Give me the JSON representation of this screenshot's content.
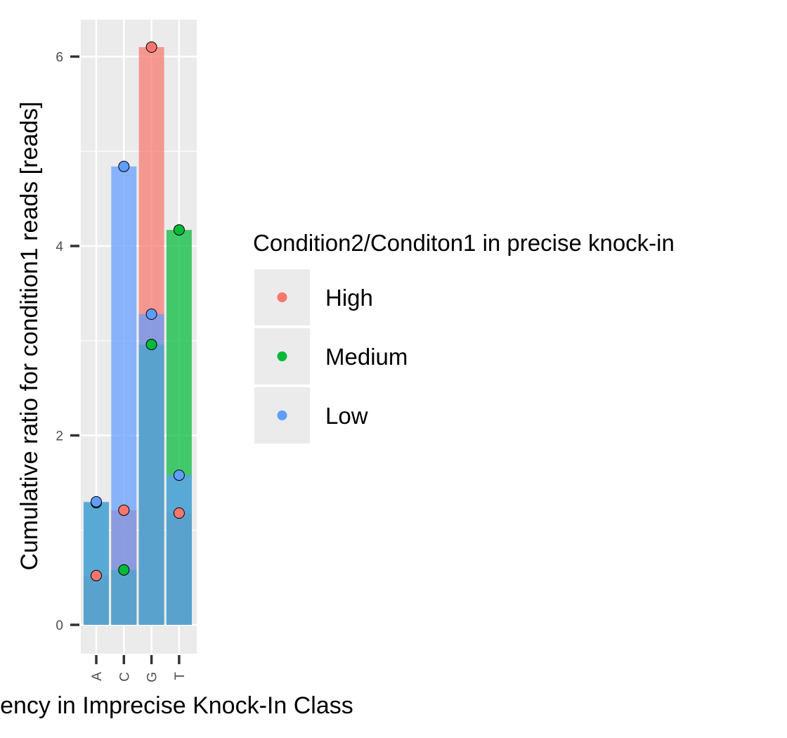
{
  "chart_data": {
    "type": "bar",
    "categories": [
      "A",
      "C",
      "G",
      "T"
    ],
    "xlabel": "Frequency in Imprecise Knock-In Class",
    "ylabel": "Cumulative ratio for condition1 reads [reads]",
    "ylim": [
      -0.3,
      6.4
    ],
    "yticks": [
      0,
      2,
      4,
      6
    ],
    "grid": true,
    "legend": {
      "title": "Condition2/Conditon1 in precise knock-in",
      "placement": "right",
      "entries": [
        "High",
        "Medium",
        "Low"
      ]
    },
    "series": [
      {
        "name": "High",
        "color": "#F8766D",
        "values": [
          0.52,
          1.21,
          6.1,
          1.18
        ]
      },
      {
        "name": "Medium",
        "color": "#00BA38",
        "values": [
          1.29,
          0.58,
          2.96,
          4.17
        ]
      },
      {
        "name": "Low",
        "color": "#619CFF",
        "values": [
          1.3,
          4.84,
          3.28,
          1.58
        ]
      }
    ]
  }
}
